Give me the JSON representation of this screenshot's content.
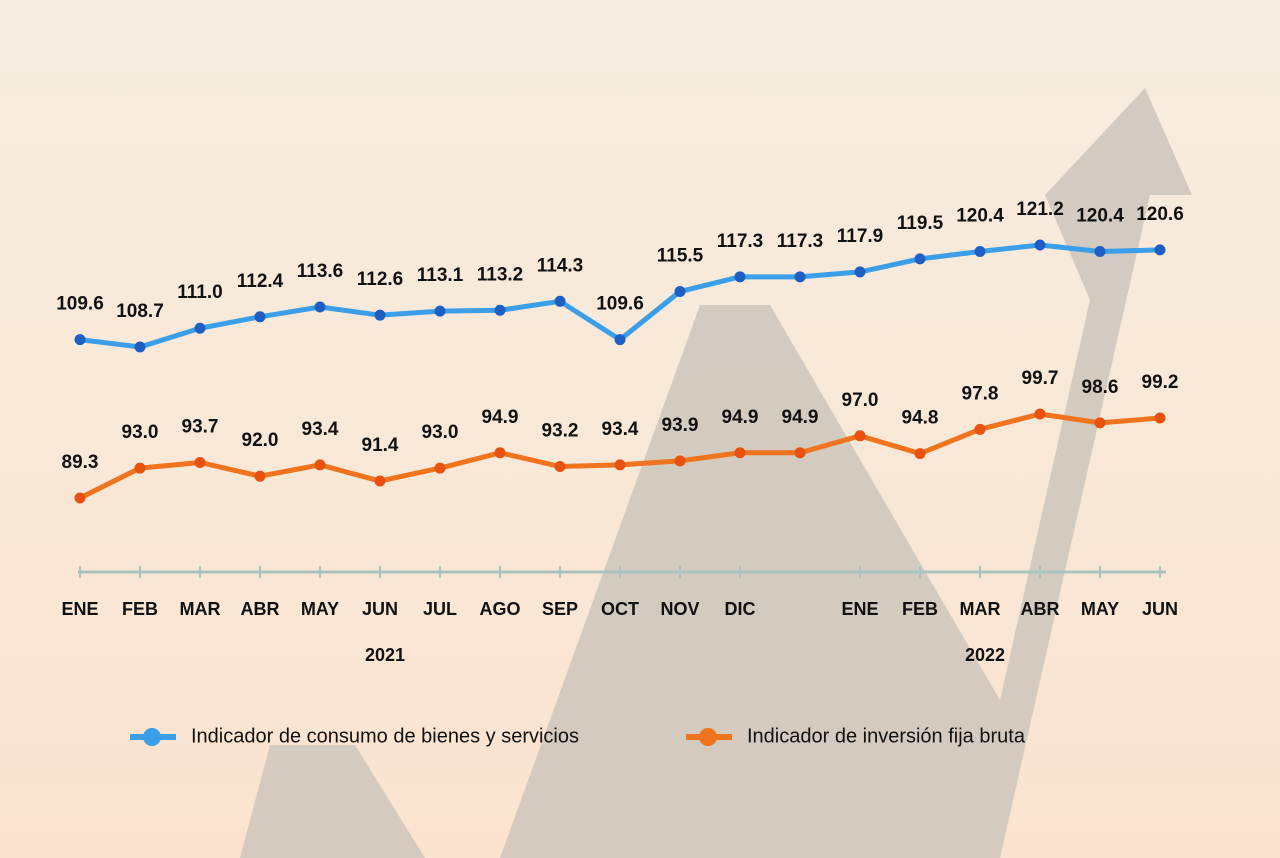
{
  "chart_data": {
    "type": "line",
    "categories": [
      "ENE",
      "FEB",
      "MAR",
      "ABR",
      "MAY",
      "JUN",
      "JUL",
      "AGO",
      "SEP",
      "OCT",
      "NOV",
      "DIC",
      null,
      "ENE",
      "FEB",
      "MAR",
      "ABR",
      "MAY",
      "JUN"
    ],
    "year_labels": [
      "2021",
      "2022"
    ],
    "series": [
      {
        "name": "Indicador de consumo de bienes y servicios",
        "color": "#3a9ee8",
        "values": [
          109.6,
          108.7,
          111.0,
          112.4,
          113.6,
          112.6,
          113.1,
          113.2,
          114.3,
          109.6,
          115.5,
          117.3,
          117.3,
          117.9,
          119.5,
          120.4,
          121.2,
          120.4,
          120.6
        ],
        "value_labels": [
          "109.6",
          "108.7",
          "111.0",
          "112.4",
          "113.6",
          "112.6",
          "113.1",
          "113.2",
          "114.3",
          "109.6",
          "115.5",
          "117.3",
          "117.3",
          "117.9",
          "119.5",
          "120.4",
          "121.2",
          "120.4",
          "120.6"
        ]
      },
      {
        "name": "Indicador de inversión fija bruta",
        "color": "#f0731e",
        "values": [
          89.3,
          93.0,
          93.7,
          92.0,
          93.4,
          91.4,
          93.0,
          94.9,
          93.2,
          93.4,
          93.9,
          94.9,
          94.9,
          97.0,
          94.8,
          97.8,
          99.7,
          98.6,
          99.2
        ],
        "value_labels": [
          "89.3",
          "93.0",
          "93.7",
          "92.0",
          "93.4",
          "91.4",
          "93.0",
          "94.9",
          "93.2",
          "93.4",
          "93.9",
          "94.9",
          "94.9",
          "97.0",
          "94.8",
          "97.8",
          "99.7",
          "98.6",
          "99.2"
        ]
      }
    ]
  }
}
